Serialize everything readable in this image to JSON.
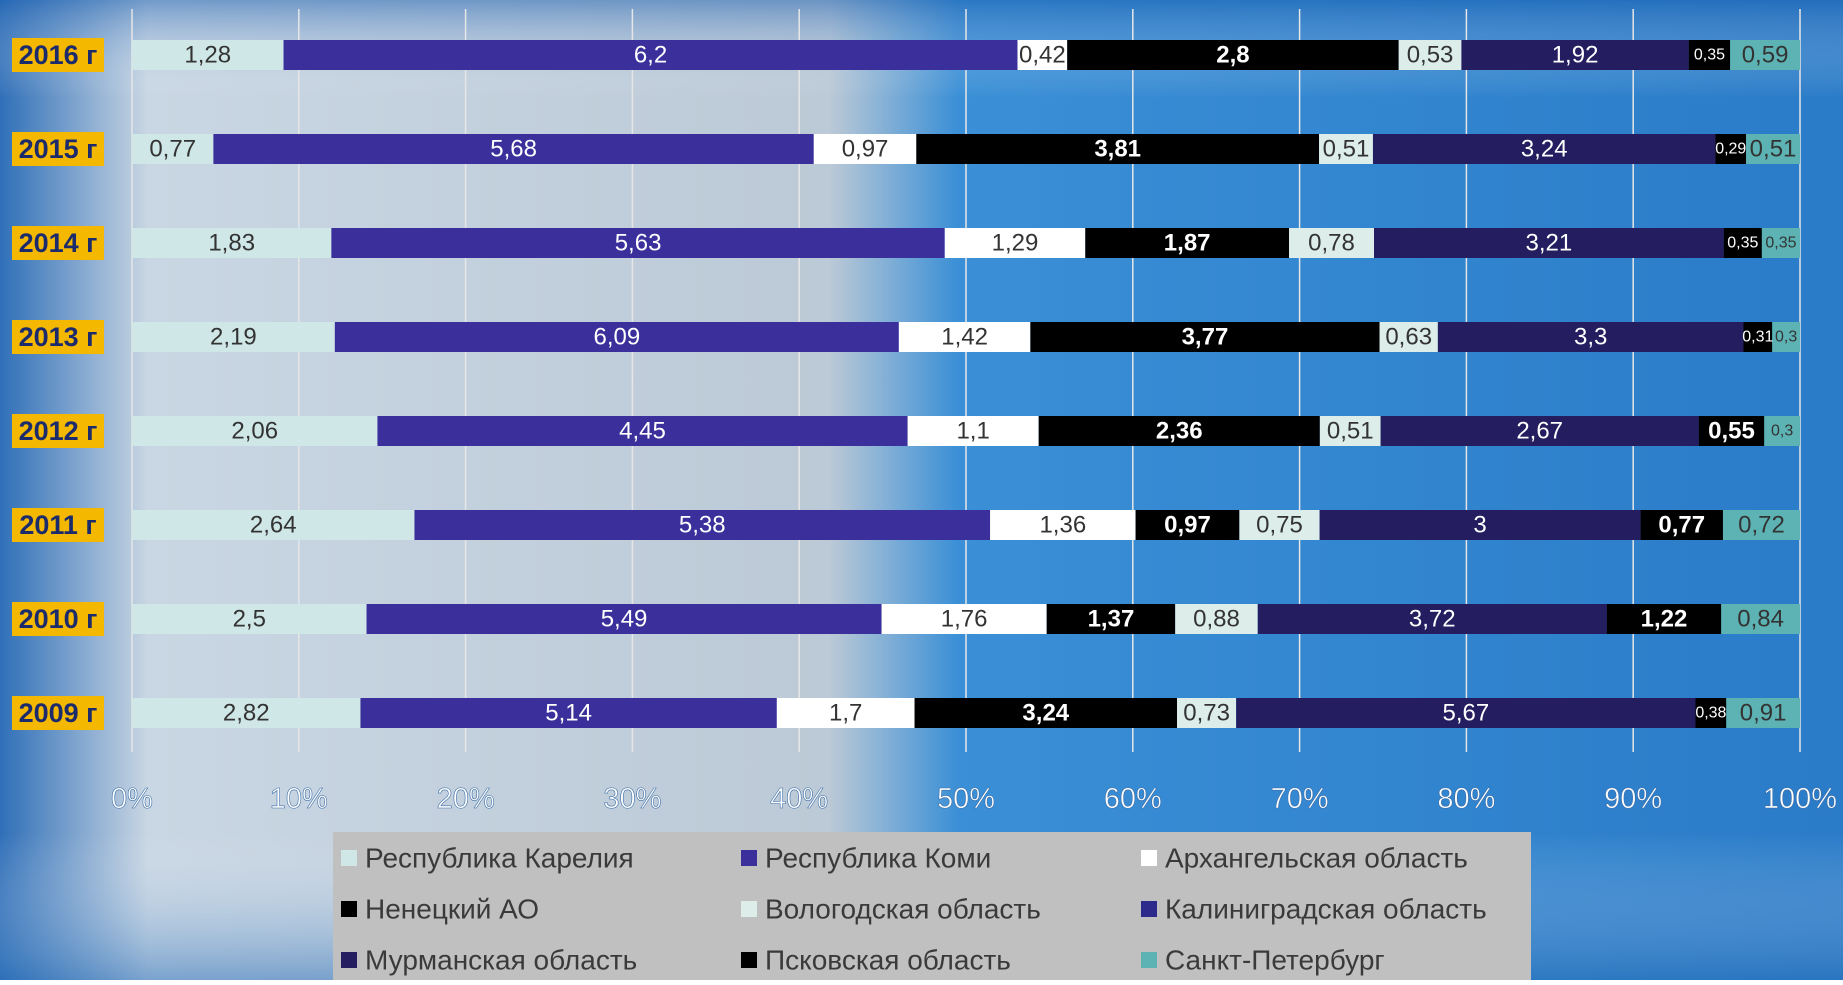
{
  "chart_data": {
    "type": "stacked-percent-bar",
    "categories": [
      "2016 г",
      "2015 г",
      "2014 г",
      "2013 г",
      "2012 г",
      "2011 г",
      "2010 г",
      "2009 г"
    ],
    "series": [
      {
        "name": "Республика Карелия",
        "color": "#cfe7e6",
        "values": [
          1.28,
          0.77,
          1.83,
          2.19,
          2.06,
          2.64,
          2.5,
          2.82
        ],
        "value_labels": [
          "1,28",
          "0,77",
          "1,83",
          "2,19",
          "2,06",
          "2,64",
          "2,5",
          "2,82"
        ]
      },
      {
        "name": "Республика Коми",
        "color": "#3b309b",
        "values": [
          6.2,
          5.68,
          5.63,
          6.09,
          4.45,
          5.38,
          5.49,
          5.14
        ],
        "value_labels": [
          "6,2",
          "5,68",
          "5,63",
          "6,09",
          "4,45",
          "5,38",
          "5,49",
          "5,14"
        ]
      },
      {
        "name": "Архангельская область",
        "color": "#ffffff",
        "values": [
          0.42,
          0.97,
          1.29,
          1.42,
          1.1,
          1.36,
          1.76,
          1.7
        ],
        "value_labels": [
          "0,42",
          "0,97",
          "1,29",
          "1,42",
          "1,1",
          "1,36",
          "1,76",
          "1,7"
        ]
      },
      {
        "name": "Ненецкий АО",
        "color": "#000000",
        "values": [
          2.8,
          3.81,
          1.87,
          3.77,
          2.36,
          0.97,
          1.37,
          3.24
        ],
        "value_labels": [
          "2,8",
          "3,81",
          "1,87",
          "3,77",
          "2,36",
          "0,97",
          "1,37",
          "3,24"
        ]
      },
      {
        "name": "Вологодская область",
        "color": "#dcedea",
        "values": [
          0.53,
          0.51,
          0.78,
          0.63,
          0.51,
          0.75,
          0.88,
          0.73
        ],
        "value_labels": [
          "0,53",
          "0,51",
          "0,78",
          "0,63",
          "0,51",
          "0,75",
          "0,88",
          "0,73"
        ]
      },
      {
        "name": "Калиниградская область",
        "color": "#2d2a8c",
        "values": [
          null,
          null,
          null,
          null,
          null,
          null,
          null,
          null
        ]
      },
      {
        "name": "Мурманская область",
        "color": "#241d5f",
        "values": [
          1.92,
          3.24,
          3.21,
          3.3,
          2.67,
          3,
          3.72,
          5.67
        ],
        "value_labels": [
          "1,92",
          "3,24",
          "3,21",
          "3,3",
          "2,67",
          "3",
          "3,72",
          "5,67"
        ]
      },
      {
        "name": "Псковская область",
        "color": "#000000",
        "values": [
          0.35,
          0.29,
          0.35,
          0.31,
          0.55,
          0.77,
          1.22,
          0.38
        ],
        "value_labels": [
          "0,35",
          "0,29",
          "0,35",
          "0,31",
          "0,55",
          "0,77",
          "1,22",
          "0,38"
        ]
      },
      {
        "name": "Санкт-Петербург",
        "color": "#5db3b4",
        "values": [
          0.59,
          0.51,
          0.35,
          0.3,
          0.3,
          0.72,
          0.84,
          0.91
        ],
        "value_labels": [
          "0,59",
          "0,51",
          "0,35",
          "0,3",
          "0,3",
          "0,72",
          "0,84",
          "0,91"
        ]
      }
    ],
    "xlim": [
      0,
      100
    ],
    "xticks": [
      {
        "value": 0,
        "label": "0%"
      },
      {
        "value": 10,
        "label": "10%"
      },
      {
        "value": 20,
        "label": "20%"
      },
      {
        "value": 30,
        "label": "30%"
      },
      {
        "value": 40,
        "label": "40%"
      },
      {
        "value": 50,
        "label": "50%"
      },
      {
        "value": 60,
        "label": "60%"
      },
      {
        "value": 70,
        "label": "70%"
      },
      {
        "value": 80,
        "label": "80%"
      },
      {
        "value": 90,
        "label": "90%"
      },
      {
        "value": 100,
        "label": "100%"
      }
    ],
    "grid": true,
    "legend": "bottom"
  }
}
